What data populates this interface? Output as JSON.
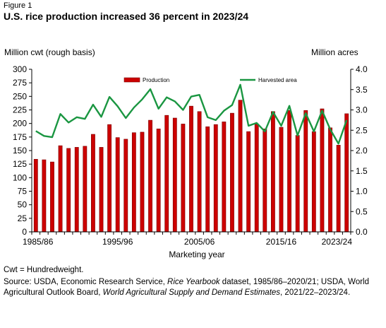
{
  "figure_label": "Figure 1",
  "title": "U.S. rice production increased 36 percent in 2023/24",
  "left_unit": "Million cwt (rough basis)",
  "right_unit": "Million acres",
  "notes": {
    "cwt": "Cwt = Hundredweight.",
    "source_parts": [
      {
        "text": "Source: USDA, Economic Research Service, ",
        "italic": false
      },
      {
        "text": "Rice Yearbook",
        "italic": true
      },
      {
        "text": " dataset, 1985/86–2020/21; USDA, World Agricultural Outlook Board, ",
        "italic": false
      },
      {
        "text": "World Agricultural Supply and Demand Estimates",
        "italic": true
      },
      {
        "text": ", 2021/22–2023/24.",
        "italic": false
      }
    ]
  },
  "colors": {
    "production": "#cc0000",
    "production_edge": "#7a0000",
    "harvested_area": "#1a9641",
    "axis": "#000000"
  },
  "chart_data": {
    "type": "bar+line",
    "xlabel": "Marketing year",
    "x_tick_labels": [
      "1985/86",
      "1995/96",
      "2005/06",
      "2015/16",
      "2023/24"
    ],
    "x_tick_positions": [
      "1985/86",
      "1995/96",
      "2005/06",
      "2015/16",
      "2023/24"
    ],
    "categories": [
      "1985/86",
      "1986/87",
      "1987/88",
      "1988/89",
      "1989/90",
      "1990/91",
      "1991/92",
      "1992/93",
      "1993/94",
      "1994/95",
      "1995/96",
      "1996/97",
      "1997/98",
      "1998/99",
      "1999/00",
      "2000/01",
      "2001/02",
      "2002/03",
      "2003/04",
      "2004/05",
      "2005/06",
      "2006/07",
      "2007/08",
      "2008/09",
      "2009/10",
      "2010/11",
      "2011/12",
      "2012/13",
      "2013/14",
      "2014/15",
      "2015/16",
      "2016/17",
      "2017/18",
      "2018/19",
      "2019/20",
      "2020/21",
      "2021/22",
      "2022/23",
      "2023/24"
    ],
    "y_left": {
      "label": "Million cwt (rough basis)",
      "min": 0,
      "max": 300,
      "ticks": [
        0,
        25,
        50,
        75,
        100,
        125,
        150,
        175,
        200,
        225,
        250,
        275,
        300
      ]
    },
    "y_right": {
      "label": "Million acres",
      "min": 0,
      "max": 4,
      "ticks": [
        "0.0",
        "0.5",
        "1.0",
        "1.5",
        "2.0",
        "2.5",
        "3.0",
        "3.5",
        "4.0"
      ]
    },
    "series": [
      {
        "name": "Production",
        "type": "bar",
        "axis": "left",
        "values": [
          134,
          133,
          129,
          159,
          154,
          156,
          158,
          180,
          156,
          198,
          174,
          171,
          183,
          184,
          206,
          190,
          215,
          210,
          199,
          232,
          222,
          194,
          198,
          203,
          219,
          243,
          185,
          199,
          190,
          222,
          193,
          224,
          178,
          224,
          185,
          227,
          192,
          160,
          218
        ]
      },
      {
        "name": "Harvested area",
        "type": "line",
        "axis": "right",
        "values": [
          2.48,
          2.36,
          2.33,
          2.9,
          2.69,
          2.82,
          2.78,
          3.13,
          2.83,
          3.32,
          3.09,
          2.8,
          3.06,
          3.26,
          3.51,
          3.03,
          3.31,
          3.21,
          3.0,
          3.33,
          3.37,
          2.82,
          2.75,
          2.98,
          3.12,
          3.62,
          2.61,
          2.68,
          2.47,
          2.95,
          2.61,
          3.1,
          2.37,
          2.92,
          2.47,
          2.98,
          2.52,
          2.17,
          2.75
        ]
      }
    ],
    "legend": {
      "placement": "top",
      "entries": [
        "Production",
        "Harvested area"
      ]
    },
    "grid": false
  }
}
